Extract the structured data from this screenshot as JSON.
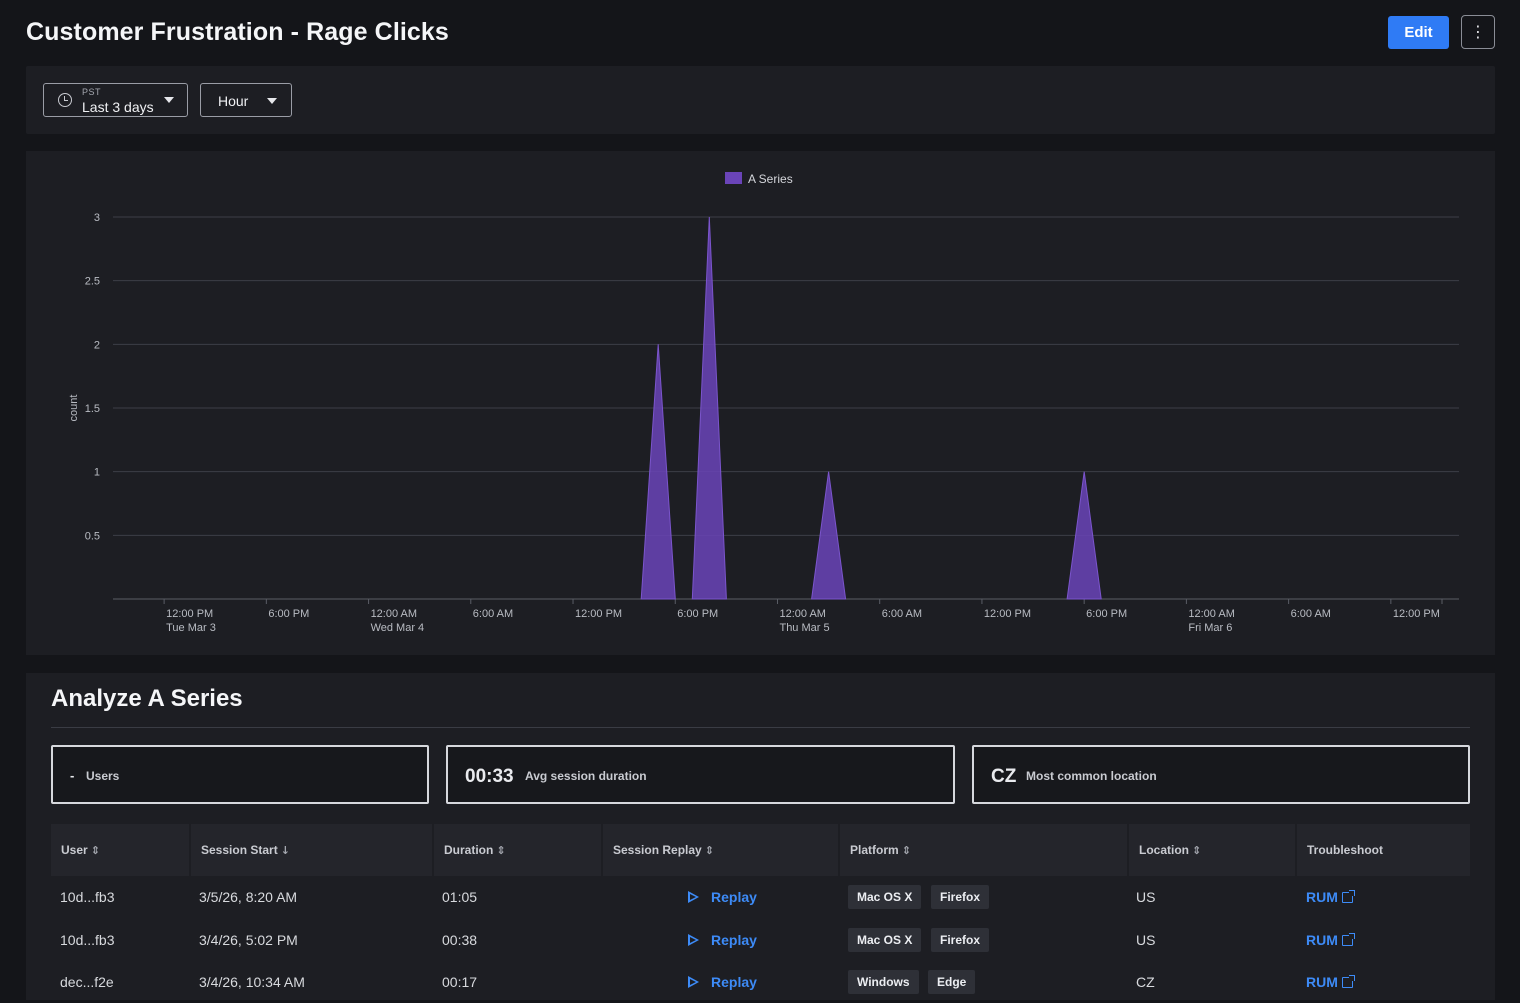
{
  "header": {
    "title": "Customer Frustration - Rage Clicks",
    "edit_label": "Edit",
    "more_icon": "⋮"
  },
  "filters": {
    "timezone": "PST",
    "time_range": "Last 3 days",
    "resolution": "Hour"
  },
  "chart_data": {
    "type": "area",
    "legend": [
      "A Series"
    ],
    "legend_position": "top-center",
    "ylabel": "count",
    "ylim": [
      0,
      3
    ],
    "y_ticks": [
      0.5,
      1,
      1.5,
      2,
      2.5,
      3
    ],
    "x_tick_labels": [
      {
        "time": "12:00 PM",
        "date": "Tue Mar 3"
      },
      {
        "time": "6:00 PM",
        "date": ""
      },
      {
        "time": "12:00 AM",
        "date": "Wed Mar 4"
      },
      {
        "time": "6:00 AM",
        "date": ""
      },
      {
        "time": "12:00 PM",
        "date": ""
      },
      {
        "time": "6:00 PM",
        "date": ""
      },
      {
        "time": "12:00 AM",
        "date": "Thu Mar 5"
      },
      {
        "time": "6:00 AM",
        "date": ""
      },
      {
        "time": "12:00 PM",
        "date": ""
      },
      {
        "time": "6:00 PM",
        "date": ""
      },
      {
        "time": "12:00 AM",
        "date": "Fri Mar 6"
      },
      {
        "time": "6:00 AM",
        "date": ""
      },
      {
        "time": "12:00 PM",
        "date": ""
      }
    ],
    "xlim": [
      "2026-03-03T09:00",
      "2026-03-06T16:00"
    ],
    "grid": true,
    "color": "#6a44b8",
    "series": [
      {
        "name": "A Series",
        "points": [
          {
            "x": "2026-03-04T16:00",
            "y": 0
          },
          {
            "x": "2026-03-04T17:00",
            "y": 2
          },
          {
            "x": "2026-03-04T18:00",
            "y": 0
          },
          {
            "x": "2026-03-04T19:00",
            "y": 0
          },
          {
            "x": "2026-03-04T20:00",
            "y": 3
          },
          {
            "x": "2026-03-04T21:00",
            "y": 0
          },
          {
            "x": "2026-03-05T02:00",
            "y": 0
          },
          {
            "x": "2026-03-05T03:00",
            "y": 1
          },
          {
            "x": "2026-03-05T04:00",
            "y": 0
          },
          {
            "x": "2026-03-05T17:00",
            "y": 0
          },
          {
            "x": "2026-03-05T18:00",
            "y": 1
          },
          {
            "x": "2026-03-05T19:00",
            "y": 0
          }
        ]
      }
    ]
  },
  "analyze": {
    "title": "Analyze A Series",
    "stats": [
      {
        "value": "-",
        "label": "Users"
      },
      {
        "value": "00:33",
        "label": "Avg session duration"
      },
      {
        "value": "CZ",
        "label": "Most common location"
      }
    ],
    "columns": [
      {
        "label": "User",
        "sort": "⇕"
      },
      {
        "label": "Session Start",
        "sort": "↓"
      },
      {
        "label": "Duration",
        "sort": "⇕"
      },
      {
        "label": "Session Replay",
        "sort": "⇕"
      },
      {
        "label": "Platform",
        "sort": "⇕"
      },
      {
        "label": "Location",
        "sort": "⇕"
      },
      {
        "label": "Troubleshoot",
        "sort": ""
      }
    ],
    "rows": [
      {
        "user": "10d...fb3",
        "start": "3/5/26, 8:20 AM",
        "duration": "01:05",
        "replay": "Replay",
        "os": "Mac OS X",
        "browser": "Firefox",
        "location": "US",
        "troubleshoot": "RUM"
      },
      {
        "user": "10d...fb3",
        "start": "3/4/26, 5:02 PM",
        "duration": "00:38",
        "replay": "Replay",
        "os": "Mac OS X",
        "browser": "Firefox",
        "location": "US",
        "troubleshoot": "RUM"
      },
      {
        "user": "dec...f2e",
        "start": "3/4/26, 10:34 AM",
        "duration": "00:17",
        "replay": "Replay",
        "os": "Windows",
        "browser": "Edge",
        "location": "CZ",
        "troubleshoot": "RUM"
      }
    ]
  }
}
